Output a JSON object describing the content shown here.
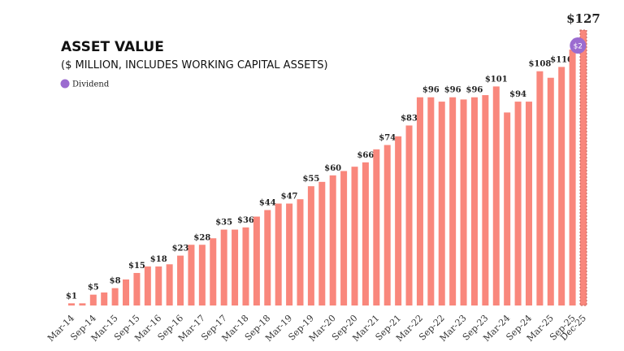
{
  "chart_data": {
    "type": "bar",
    "title": "ASSET VALUE",
    "subtitle": "($ MILLION, INCLUDES WORKING CAPITAL ASSETS)",
    "categories": [
      "Mar-14",
      null,
      "Sep-14",
      null,
      "Mar-15",
      null,
      "Sep-15",
      null,
      "Mar-16",
      null,
      "Sep-16",
      null,
      "Mar-17",
      null,
      "Sep-17",
      null,
      "Mar-18",
      null,
      "Sep-18",
      null,
      "Mar-19",
      null,
      "Sep-19",
      null,
      "Mar-20",
      null,
      "Sep-20",
      null,
      "Mar-21",
      null,
      "Sep-21",
      null,
      "Mar-22",
      null,
      "Sep-22",
      null,
      "Mar-23",
      null,
      "Sep-23",
      null,
      "Mar-24",
      null,
      "Sep-24",
      null,
      "Mar-25",
      null,
      "Sep-25",
      "Dec-25"
    ],
    "series": [
      {
        "name": null,
        "color": "#f9877c",
        "values": [
          1,
          1,
          5,
          6,
          8,
          12,
          15,
          18,
          18,
          19,
          23,
          28,
          28,
          31,
          35,
          35,
          36,
          41,
          44,
          47,
          47,
          49,
          55,
          57,
          60,
          62,
          64,
          66,
          72,
          74,
          78,
          83,
          96,
          96,
          94,
          96,
          95,
          96,
          97,
          101,
          89,
          94,
          94,
          108,
          105,
          110,
          118,
          127
        ],
        "value_labels": [
          "$1",
          null,
          "$5",
          null,
          "$8",
          null,
          "$15",
          null,
          "$18",
          null,
          "$23",
          null,
          "$28",
          null,
          "$35",
          null,
          "$36",
          null,
          "$44",
          null,
          "$47",
          null,
          "$55",
          null,
          "$60",
          null,
          null,
          "$66",
          null,
          "$74",
          null,
          "$83",
          null,
          "$96",
          null,
          "$96",
          null,
          "$96",
          null,
          "$101",
          null,
          "$94",
          null,
          "$108",
          null,
          "$110",
          null,
          "$127"
        ]
      },
      {
        "name": "Dividend",
        "color": "#9b6bd0",
        "values": [
          null,
          null,
          null,
          null,
          null,
          null,
          null,
          null,
          null,
          null,
          null,
          null,
          null,
          null,
          null,
          null,
          null,
          null,
          null,
          null,
          null,
          null,
          null,
          null,
          null,
          null,
          null,
          null,
          null,
          null,
          null,
          null,
          null,
          null,
          null,
          null,
          null,
          null,
          null,
          null,
          null,
          null,
          null,
          null,
          null,
          null,
          2,
          null
        ],
        "value_labels": [
          null,
          null,
          null,
          null,
          null,
          null,
          null,
          null,
          null,
          null,
          null,
          null,
          null,
          null,
          null,
          null,
          null,
          null,
          null,
          null,
          null,
          null,
          null,
          null,
          null,
          null,
          null,
          null,
          null,
          null,
          null,
          null,
          null,
          null,
          null,
          null,
          null,
          null,
          null,
          null,
          null,
          null,
          null,
          null,
          null,
          null,
          "$2",
          null
        ]
      }
    ]
  }
}
